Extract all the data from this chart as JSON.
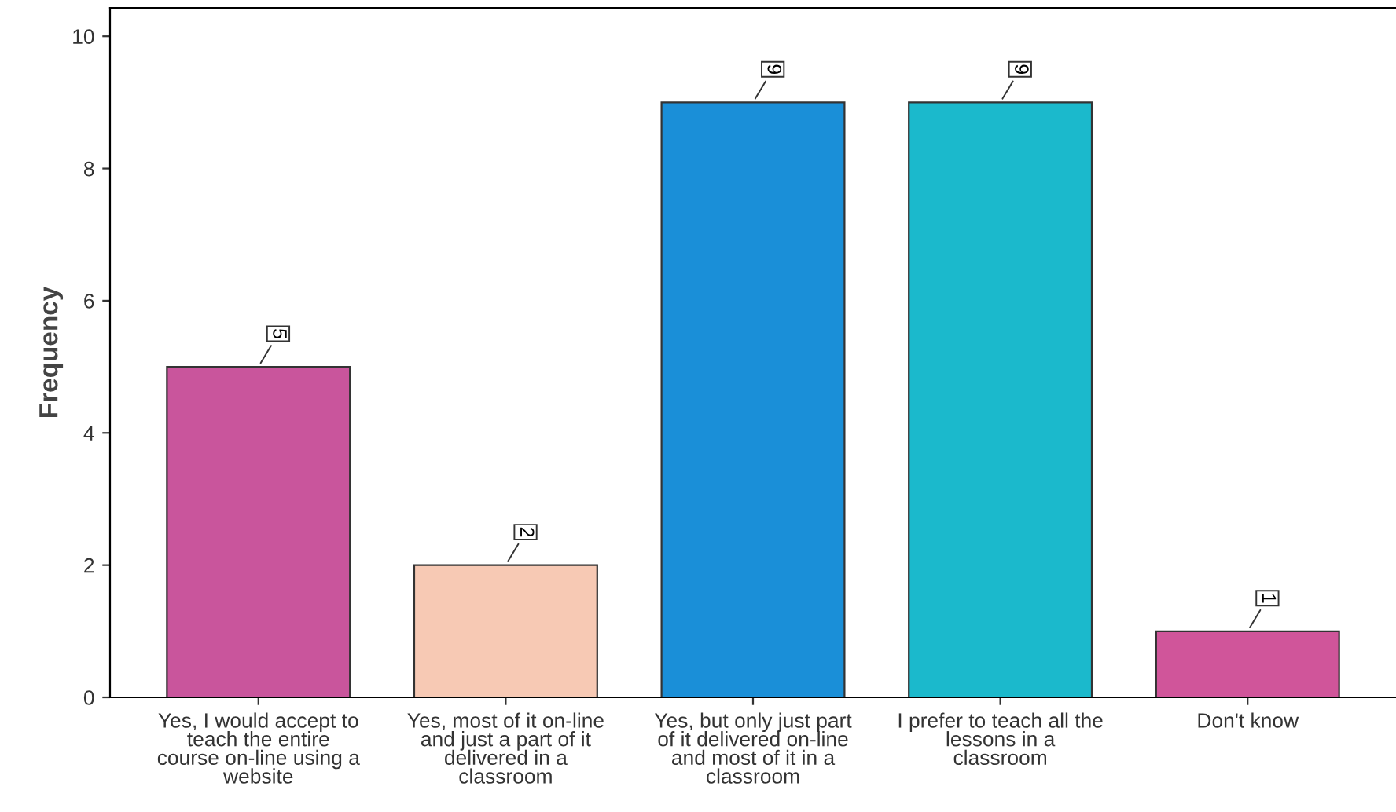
{
  "chart_data": {
    "type": "bar",
    "ylabel": "Frequency",
    "categories": [
      "Yes, I would accept to\nteach the entire\ncourse on-line using a\nwebsite",
      "Yes, most of it on-line\nand just a part of it\ndelivered in a\nclassroom",
      "Yes, but only just part\nof it delivered on-line\nand most of it in a\nclassroom",
      "I prefer to teach all the\nlessons in a\nclassroom",
      "Don't know"
    ],
    "values": [
      5,
      2,
      9,
      9,
      1
    ],
    "colors": [
      "#c9559c",
      "#f7c9b4",
      "#1a8fd8",
      "#1bb9cc",
      "#d0559a"
    ],
    "ylim": [
      0,
      10.43
    ],
    "yticks": [
      0,
      2,
      4,
      6,
      8,
      10
    ],
    "grid": false,
    "data_labels": true,
    "legend": false
  }
}
